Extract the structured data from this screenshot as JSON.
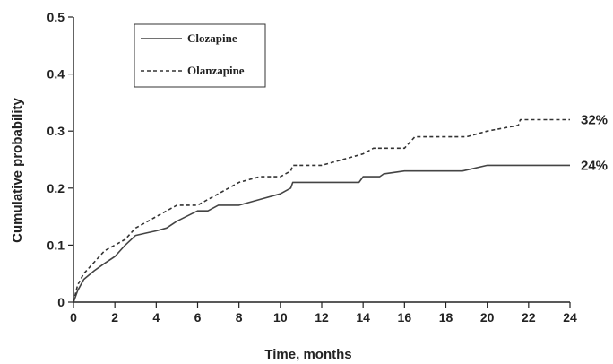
{
  "chart_data": {
    "type": "line",
    "title": "",
    "xlabel": "Time, months",
    "ylabel": "Cumulative probability",
    "xlim": [
      0,
      24
    ],
    "ylim": [
      0,
      0.5
    ],
    "x_ticks": [
      "0",
      "2",
      "4",
      "6",
      "8",
      "10",
      "12",
      "14",
      "16",
      "18",
      "20",
      "22",
      "24"
    ],
    "y_ticks": [
      "0",
      "0.1",
      "0.2",
      "0.3",
      "0.4",
      "0.5"
    ],
    "grid": false,
    "legend_position": "top-left",
    "series": [
      {
        "name": "Clozapine",
        "style": "solid",
        "color": "#444444",
        "end_label": "24%",
        "points": [
          [
            0,
            0
          ],
          [
            0.2,
            0.02
          ],
          [
            0.5,
            0.04
          ],
          [
            1,
            0.055
          ],
          [
            1.5,
            0.068
          ],
          [
            2,
            0.08
          ],
          [
            2.5,
            0.1
          ],
          [
            3,
            0.117
          ],
          [
            3.5,
            0.121
          ],
          [
            4,
            0.125
          ],
          [
            4.5,
            0.13
          ],
          [
            5,
            0.142
          ],
          [
            6,
            0.16
          ],
          [
            6.5,
            0.16
          ],
          [
            7,
            0.17
          ],
          [
            8,
            0.17
          ],
          [
            9,
            0.18
          ],
          [
            10,
            0.19
          ],
          [
            10.5,
            0.2
          ],
          [
            10.6,
            0.21
          ],
          [
            12,
            0.21
          ],
          [
            13.8,
            0.21
          ],
          [
            14,
            0.22
          ],
          [
            14.8,
            0.22
          ],
          [
            15,
            0.225
          ],
          [
            16,
            0.23
          ],
          [
            18.8,
            0.23
          ],
          [
            20,
            0.24
          ],
          [
            24,
            0.24
          ]
        ]
      },
      {
        "name": "Olanzapine",
        "style": "dashed",
        "color": "#333333",
        "end_label": "32%",
        "points": [
          [
            0,
            0
          ],
          [
            0.2,
            0.03
          ],
          [
            0.5,
            0.05
          ],
          [
            1,
            0.07
          ],
          [
            1.5,
            0.09
          ],
          [
            2,
            0.1
          ],
          [
            2.5,
            0.11
          ],
          [
            3,
            0.13
          ],
          [
            3.5,
            0.14
          ],
          [
            4,
            0.15
          ],
          [
            4.5,
            0.16
          ],
          [
            5,
            0.17
          ],
          [
            6,
            0.17
          ],
          [
            6.5,
            0.18
          ],
          [
            7,
            0.19
          ],
          [
            8,
            0.21
          ],
          [
            9,
            0.22
          ],
          [
            10,
            0.22
          ],
          [
            10.5,
            0.23
          ],
          [
            10.6,
            0.24
          ],
          [
            12,
            0.24
          ],
          [
            13,
            0.25
          ],
          [
            14,
            0.26
          ],
          [
            14.5,
            0.27
          ],
          [
            16,
            0.27
          ],
          [
            16.5,
            0.29
          ],
          [
            19,
            0.29
          ],
          [
            20,
            0.3
          ],
          [
            21.5,
            0.31
          ],
          [
            21.6,
            0.32
          ],
          [
            24,
            0.32
          ]
        ]
      }
    ]
  }
}
